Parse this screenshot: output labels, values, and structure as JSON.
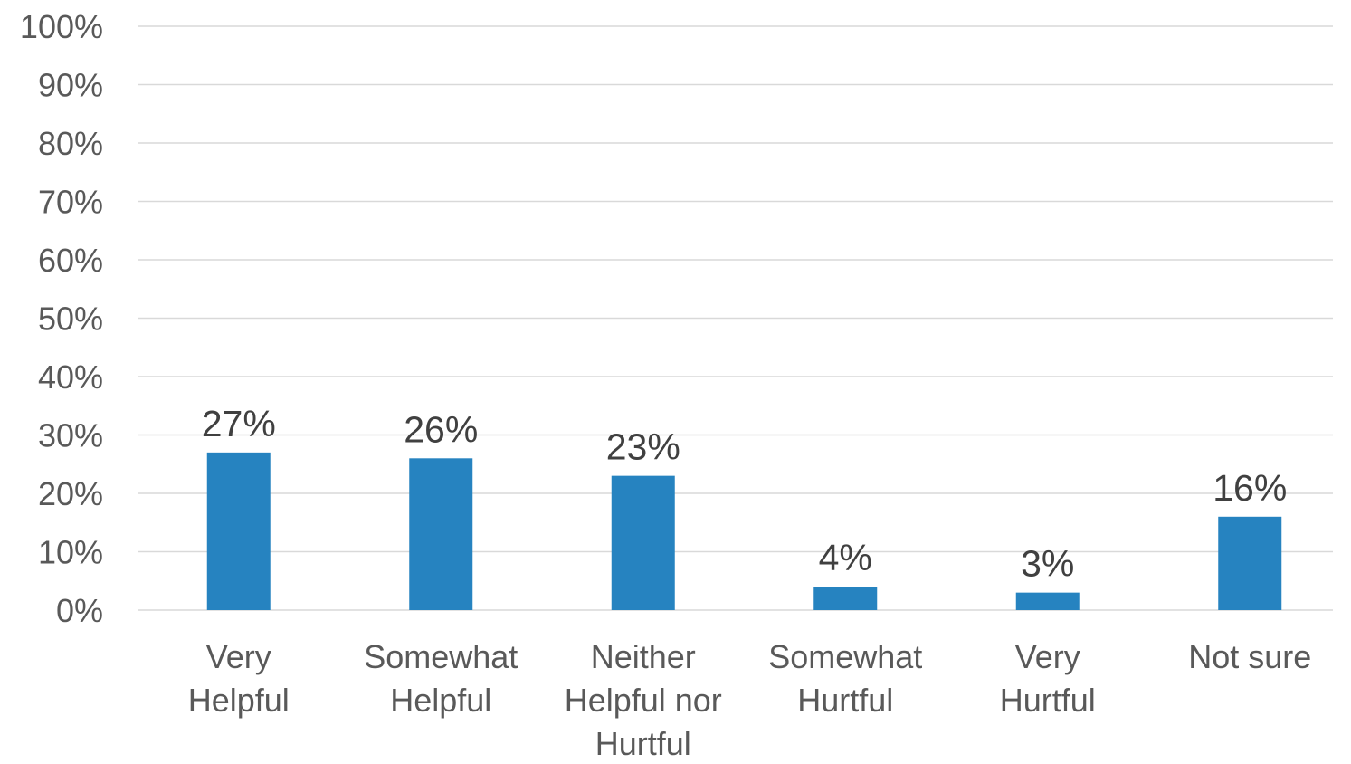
{
  "chart_data": {
    "type": "bar",
    "categories": [
      [
        "Very",
        "Helpful"
      ],
      [
        "Somewhat",
        "Helpful"
      ],
      [
        "Neither",
        "Helpful nor",
        "Hurtful"
      ],
      [
        "Somewhat",
        "Hurtful"
      ],
      [
        "Very",
        "Hurtful"
      ],
      [
        "Not sure"
      ]
    ],
    "values": [
      27,
      26,
      23,
      4,
      3,
      16
    ],
    "data_labels": [
      "27%",
      "26%",
      "23%",
      "4%",
      "3%",
      "16%"
    ],
    "ylim": [
      0,
      100
    ],
    "yticks": [
      0,
      10,
      20,
      30,
      40,
      50,
      60,
      70,
      80,
      90,
      100
    ],
    "ytick_labels": [
      "0%",
      "10%",
      "20%",
      "30%",
      "40%",
      "50%",
      "60%",
      "70%",
      "80%",
      "90%",
      "100%"
    ],
    "grid": true,
    "legend": "none",
    "colors": {
      "bar": "#2683c0",
      "grid": "#d9d9d9",
      "tick_text": "#595959",
      "label_text": "#404040"
    }
  }
}
